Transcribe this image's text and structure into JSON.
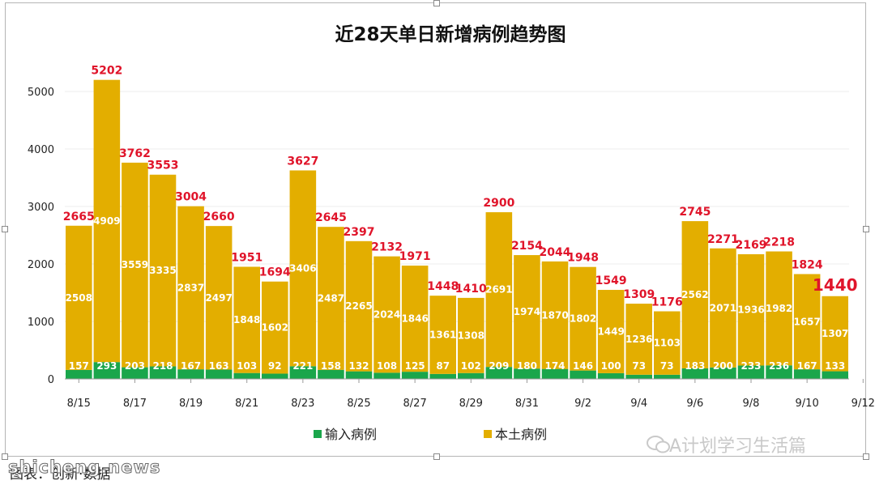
{
  "chart_data": {
    "type": "bar",
    "stacked": true,
    "title": "近28天单日新增病例趋势图",
    "categories": [
      "8/15",
      "8/16",
      "8/17",
      "8/18",
      "8/19",
      "8/20",
      "8/21",
      "8/22",
      "8/23",
      "8/24",
      "8/25",
      "8/26",
      "8/27",
      "8/28",
      "8/29",
      "8/30",
      "8/31",
      "9/1",
      "9/2",
      "9/3",
      "9/4",
      "9/5",
      "9/6",
      "9/7",
      "9/8",
      "9/9",
      "9/10",
      "9/11"
    ],
    "tick_labels": [
      "8/15",
      "8/17",
      "8/19",
      "8/21",
      "8/23",
      "8/25",
      "8/27",
      "8/29",
      "8/31",
      "9/2",
      "9/4",
      "9/6",
      "9/8",
      "9/10",
      "9/12"
    ],
    "series": [
      {
        "name": "输入病例",
        "color": "#1aa64b",
        "values": [
          157,
          293,
          203,
          218,
          167,
          163,
          103,
          92,
          221,
          158,
          132,
          108,
          125,
          87,
          102,
          209,
          180,
          174,
          146,
          100,
          73,
          73,
          183,
          200,
          233,
          236,
          167,
          133
        ]
      },
      {
        "name": "本土病例",
        "color": "#e3ae00",
        "values": [
          2508,
          4909,
          3559,
          3335,
          2837,
          2497,
          1848,
          1602,
          3406,
          2487,
          2265,
          2024,
          1846,
          1361,
          1308,
          2691,
          1974,
          1870,
          1802,
          1449,
          1236,
          1103,
          2562,
          2071,
          1936,
          1982,
          1657,
          1307
        ]
      }
    ],
    "totals": [
      2665,
      5202,
      3762,
      3553,
      3004,
      2660,
      1951,
      1694,
      3627,
      2645,
      2397,
      2132,
      1971,
      1448,
      1410,
      2900,
      2154,
      2044,
      1948,
      1549,
      1309,
      1176,
      2745,
      2271,
      2169,
      2218,
      1824,
      1440
    ],
    "highlight_last_total": true,
    "yticks": [
      0,
      1000,
      2000,
      3000,
      4000,
      5000
    ],
    "ylim": [
      0,
      5600
    ],
    "grid": true,
    "legend": "bottom"
  },
  "watermark": "A计划学习生活篇",
  "caption": "图表：创新·数据",
  "site": "shicheng.news",
  "colors": {
    "total_label": "#e0142a",
    "tick_text": "#222222",
    "grid": "#ececec",
    "axis": "#9a9a9a"
  }
}
